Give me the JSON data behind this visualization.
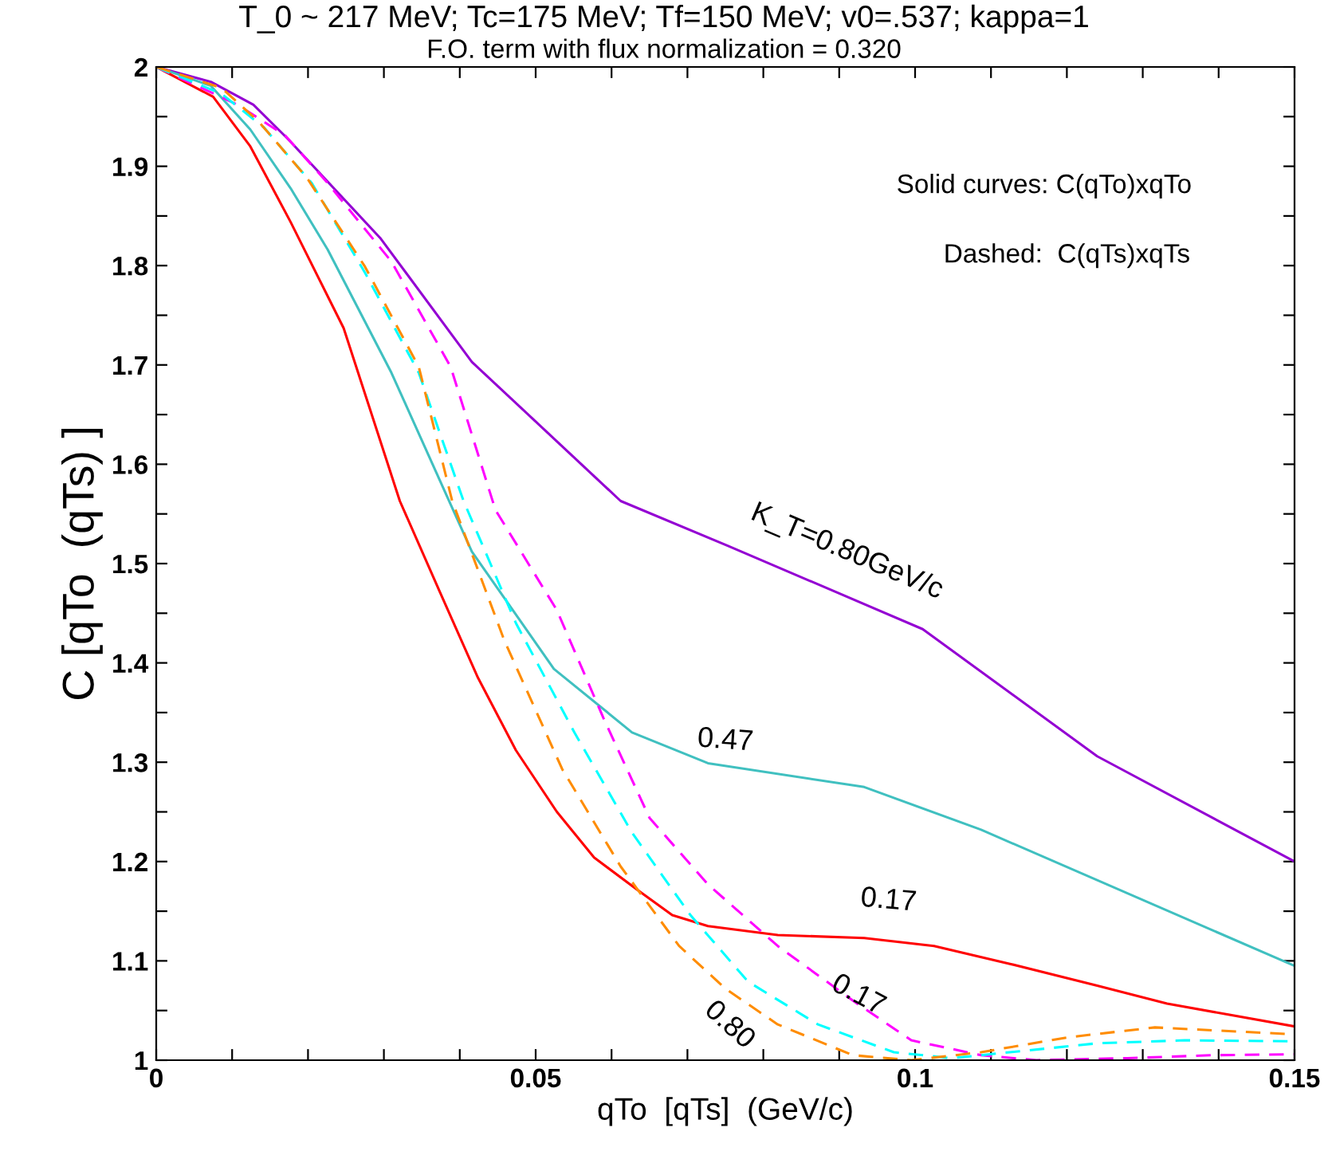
{
  "chart_data": {
    "type": "line",
    "title": "T_0 ~ 217 MeV; Tc=175 MeV; Tf=150 MeV; v0=.537; kappa=1",
    "subtitle": "F.O. term with flux normalization = 0.320",
    "xlabel": "qTo  [qTs]  (GeV/c)",
    "ylabel": "C [qTo  (qTs) ]",
    "xlim": [
      0,
      0.15
    ],
    "ylim": [
      1,
      2
    ],
    "xticks": [
      0,
      {
        "value": 0.01,
        "label": null
      },
      {
        "value": 0.02,
        "label": null
      },
      {
        "value": 0.03,
        "label": null
      },
      {
        "value": 0.04,
        "label": null
      },
      0.05,
      {
        "value": 0.06,
        "label": null
      },
      {
        "value": 0.07,
        "label": null
      },
      {
        "value": 0.08,
        "label": null
      },
      {
        "value": 0.09,
        "label": null
      },
      0.1,
      {
        "value": 0.11,
        "label": null
      },
      {
        "value": 0.12,
        "label": null
      },
      {
        "value": 0.13,
        "label": null
      },
      {
        "value": 0.14,
        "label": null
      },
      0.15
    ],
    "yticks": [
      1,
      {
        "value": 1.05,
        "label": null
      },
      1.1,
      {
        "value": 1.15,
        "label": null
      },
      1.2,
      {
        "value": 1.25,
        "label": null
      },
      1.3,
      {
        "value": 1.35,
        "label": null
      },
      1.4,
      {
        "value": 1.45,
        "label": null
      },
      1.5,
      {
        "value": 1.55,
        "label": null
      },
      1.6,
      {
        "value": 1.65,
        "label": null
      },
      1.7,
      {
        "value": 1.75,
        "label": null
      },
      1.8,
      {
        "value": 1.85,
        "label": null
      },
      1.9,
      {
        "value": 1.95,
        "label": null
      },
      2
    ],
    "grid": false,
    "legend": false,
    "series": [
      {
        "name": "K_T=0.80GeV/c",
        "color": "#9400d3",
        "line_style": "solid",
        "x": [
          0,
          0.0072,
          0.0128,
          0.0173,
          0.0296,
          0.0416,
          0.0612,
          0.0753,
          0.101,
          0.124,
          0.15
        ],
        "values": [
          2.0,
          1.985,
          1.962,
          1.928,
          1.827,
          1.703,
          1.563,
          1.518,
          1.434,
          1.306,
          1.2
        ]
      },
      {
        "name": "0.47",
        "color": "#40c0c0",
        "line_style": "solid",
        "x": [
          0,
          0.0072,
          0.0124,
          0.0177,
          0.0226,
          0.031,
          0.0416,
          0.0524,
          0.0627,
          0.0727,
          0.0933,
          0.1087,
          0.15
        ],
        "values": [
          2.0,
          1.981,
          1.937,
          1.878,
          1.816,
          1.692,
          1.512,
          1.394,
          1.33,
          1.299,
          1.275,
          1.232,
          1.095
        ]
      },
      {
        "name": "0.17",
        "color": "#ff0000",
        "line_style": "solid",
        "x": [
          0,
          0.0075,
          0.0124,
          0.0177,
          0.0247,
          0.0321,
          0.0374,
          0.0424,
          0.0474,
          0.0528,
          0.0577,
          0.0635,
          0.068,
          0.0727,
          0.0819,
          0.0933,
          0.1025,
          0.1125,
          0.124,
          0.1332,
          0.15
        ],
        "values": [
          2.0,
          1.97,
          1.92,
          1.844,
          1.737,
          1.563,
          1.471,
          1.385,
          1.312,
          1.25,
          1.204,
          1.171,
          1.146,
          1.135,
          1.126,
          1.123,
          1.115,
          1.097,
          1.075,
          1.057,
          1.034
        ]
      },
      {
        "name": "0.17",
        "color": "#ff00ff",
        "line_style": "dashed",
        "x": [
          0,
          0.0107,
          0.017,
          0.0226,
          0.031,
          0.0388,
          0.0447,
          0.0528,
          0.0589,
          0.065,
          0.0727,
          0.0819,
          0.0918,
          0.0995,
          0.1087,
          0.116,
          0.128,
          0.139,
          0.15
        ],
        "values": [
          2.0,
          1.962,
          1.931,
          1.883,
          1.804,
          1.698,
          1.554,
          1.453,
          1.345,
          1.244,
          1.177,
          1.115,
          1.06,
          1.02,
          1.005,
          1.0,
          1.002,
          1.005,
          1.006
        ]
      },
      {
        "color": "#00ffff",
        "line_style": "dashed",
        "x": [
          0,
          0.0086,
          0.0142,
          0.0205,
          0.0275,
          0.0346,
          0.0405,
          0.0474,
          0.0551,
          0.0627,
          0.0704,
          0.078,
          0.0872,
          0.0972,
          0.1048,
          0.1125,
          0.124,
          0.1355,
          0.15
        ],
        "values": [
          2.0,
          1.973,
          1.939,
          1.883,
          1.793,
          1.692,
          1.563,
          1.44,
          1.33,
          1.229,
          1.146,
          1.079,
          1.036,
          1.008,
          1.002,
          1.008,
          1.017,
          1.02,
          1.019
        ]
      },
      {
        "name": "0.80",
        "color": "#ff8c00",
        "line_style": "dashed",
        "x": [
          0,
          0.0086,
          0.0135,
          0.0198,
          0.0275,
          0.0346,
          0.039,
          0.0459,
          0.0535,
          0.0612,
          0.0689,
          0.075,
          0.0819,
          0.0918,
          0.0995,
          0.1087,
          0.1201,
          0.1316,
          0.15
        ],
        "values": [
          2.0,
          1.979,
          1.945,
          1.889,
          1.799,
          1.698,
          1.563,
          1.422,
          1.293,
          1.195,
          1.115,
          1.072,
          1.036,
          1.005,
          1.0,
          1.008,
          1.023,
          1.033,
          1.026
        ]
      }
    ],
    "annotations": [
      "Solid curves: C(qTo)xqTo",
      "Dashed:  C(qTs)xqTs"
    ]
  }
}
